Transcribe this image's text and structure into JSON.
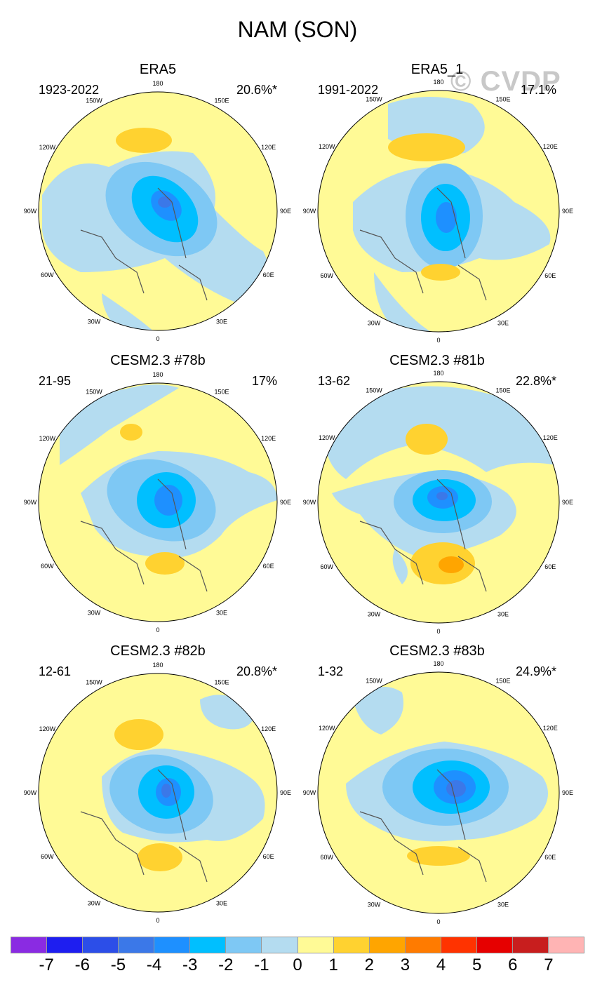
{
  "title": "NAM (SON)",
  "watermark": "© CVDP",
  "lon_labels": [
    "180",
    "150E",
    "120E",
    "90E",
    "60E",
    "30E",
    "0",
    "30W",
    "60W",
    "90W",
    "120W",
    "150W"
  ],
  "chart_data": {
    "type": "heatmap",
    "projection": "north-polar-stereographic",
    "panels": [
      {
        "title": "ERA5",
        "years": "1923-2022",
        "percent": "20.6%*",
        "center_min": -4
      },
      {
        "title": "ERA5_1",
        "years": "1991-2022",
        "percent": "17.1%",
        "center_min": -3
      },
      {
        "title": "CESM2.3 #78b",
        "years": "21-95",
        "percent": "17%",
        "center_min": -4
      },
      {
        "title": "CESM2.3 #81b",
        "years": "13-62",
        "percent": "22.8%*",
        "center_min": -4
      },
      {
        "title": "CESM2.3 #82b",
        "years": "12-61",
        "percent": "20.8%*",
        "center_min": -4
      },
      {
        "title": "CESM2.3 #83b",
        "years": "1-32",
        "percent": "24.9%*",
        "center_min": -5
      }
    ],
    "colorbar": {
      "levels": [
        "-7",
        "-6",
        "-5",
        "-4",
        "-3",
        "-2",
        "-1",
        "0",
        "1",
        "2",
        "3",
        "4",
        "5",
        "6",
        "7"
      ],
      "colors": [
        "#8a2be2",
        "#1e1ef0",
        "#2c4ee8",
        "#3b78e8",
        "#1e90ff",
        "#00bfff",
        "#7ec8f4",
        "#b4dcf0",
        "#fffa96",
        "#ffd230",
        "#ffa500",
        "#ff7b00",
        "#ff3300",
        "#e60000",
        "#c81e1e",
        "#ffb4b4"
      ]
    }
  }
}
